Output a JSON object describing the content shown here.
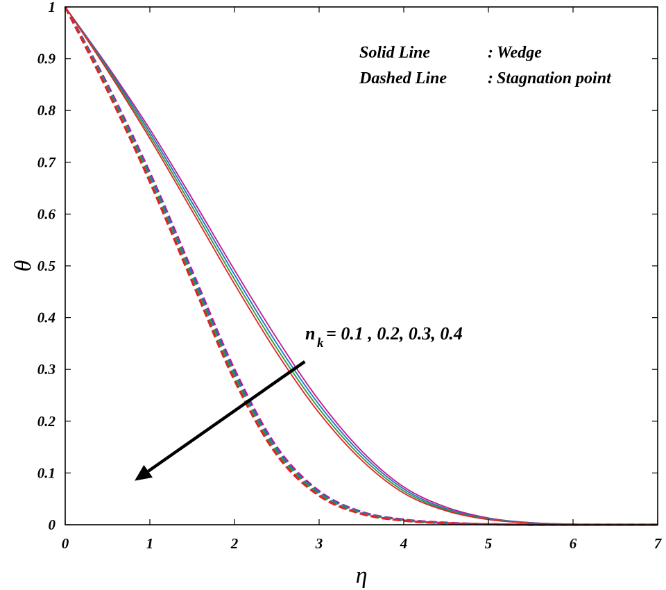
{
  "chart_data": {
    "type": "line",
    "title": "",
    "xlabel": "η",
    "ylabel": "θ",
    "xlim": [
      0,
      7
    ],
    "ylim": [
      0,
      1
    ],
    "xticks": [
      "0",
      "1",
      "2",
      "3",
      "4",
      "5",
      "6",
      "7"
    ],
    "yticks": [
      "0",
      "0.1",
      "0.2",
      "0.3",
      "0.4",
      "0.5",
      "0.6",
      "0.7",
      "0.8",
      "0.9",
      "1"
    ],
    "grid": false,
    "legend": {
      "placement": "top-right",
      "entries": [
        {
          "key": "Solid Line",
          "sep": ":",
          "value": "Wedge"
        },
        {
          "key": "Dashed Line",
          "sep": ":",
          "value": "Stagnation point"
        }
      ]
    },
    "annotation": {
      "prefix": "n",
      "subscript": "k",
      "text": "= 0.1 , 0.2, 0.3, 0.4",
      "arrow_from": [
        2.83,
        0.315
      ],
      "arrow_to": [
        0.82,
        0.085
      ]
    },
    "x": [
      0,
      0.5,
      1,
      1.5,
      2,
      2.5,
      3,
      3.5,
      4,
      4.5,
      5,
      5.5,
      6,
      6.5,
      7
    ],
    "series": [
      {
        "name": "Wedge, n_k = 0.1",
        "style": "solid",
        "color": "#c2188b",
        "values": [
          1.0,
          0.886,
          0.764,
          0.63,
          0.492,
          0.36,
          0.24,
          0.143,
          0.073,
          0.034,
          0.013,
          0.004,
          0.001,
          0.0,
          0.0
        ]
      },
      {
        "name": "Wedge, n_k = 0.2",
        "style": "solid",
        "color": "#1f6fd1",
        "values": [
          1.0,
          0.883,
          0.758,
          0.622,
          0.483,
          0.35,
          0.232,
          0.137,
          0.069,
          0.031,
          0.012,
          0.004,
          0.001,
          0.0,
          0.0
        ]
      },
      {
        "name": "Wedge, n_k = 0.3",
        "style": "solid",
        "color": "#2e9a2e",
        "values": [
          1.0,
          0.88,
          0.752,
          0.614,
          0.474,
          0.341,
          0.224,
          0.131,
          0.065,
          0.029,
          0.011,
          0.003,
          0.001,
          0.0,
          0.0
        ]
      },
      {
        "name": "Wedge, n_k = 0.4",
        "style": "solid",
        "color": "#e0222a",
        "values": [
          1.0,
          0.877,
          0.746,
          0.606,
          0.465,
          0.332,
          0.216,
          0.125,
          0.061,
          0.027,
          0.01,
          0.003,
          0.001,
          0.0,
          0.0
        ]
      },
      {
        "name": "Stagnation point, n_k = 0.1",
        "style": "dashed",
        "color": "#c2188b",
        "values": [
          1.0,
          0.85,
          0.68,
          0.49,
          0.3,
          0.15,
          0.065,
          0.025,
          0.01,
          0.004,
          0.001,
          0.0,
          0.0,
          0.0,
          0.0
        ]
      },
      {
        "name": "Stagnation point, n_k = 0.2",
        "style": "dashed",
        "color": "#1f6fd1",
        "values": [
          1.0,
          0.846,
          0.674,
          0.483,
          0.293,
          0.145,
          0.062,
          0.024,
          0.009,
          0.003,
          0.001,
          0.0,
          0.0,
          0.0,
          0.0
        ]
      },
      {
        "name": "Stagnation point, n_k = 0.3",
        "style": "dashed",
        "color": "#2e9a2e",
        "values": [
          1.0,
          0.842,
          0.668,
          0.476,
          0.286,
          0.14,
          0.059,
          0.022,
          0.008,
          0.003,
          0.001,
          0.0,
          0.0,
          0.0,
          0.0
        ]
      },
      {
        "name": "Stagnation point, n_k = 0.4",
        "style": "dashed",
        "color": "#e0222a",
        "values": [
          1.0,
          0.838,
          0.662,
          0.469,
          0.279,
          0.135,
          0.056,
          0.021,
          0.008,
          0.003,
          0.001,
          0.0,
          0.0,
          0.0,
          0.0
        ]
      }
    ]
  }
}
